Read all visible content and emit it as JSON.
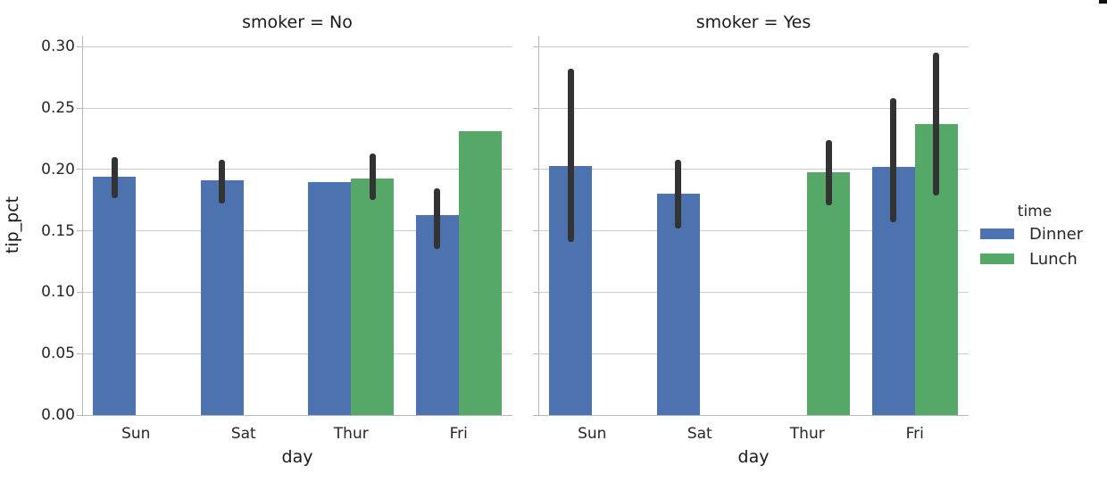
{
  "figure": {
    "background": "#ffffff"
  },
  "legend": {
    "title": "time",
    "entries": [
      {
        "label": "Dinner",
        "color": "#4c72b0"
      },
      {
        "label": "Lunch",
        "color": "#55a868"
      }
    ]
  },
  "chart_data": {
    "type": "bar",
    "categories": [
      "Sun",
      "Sat",
      "Thur",
      "Fri"
    ],
    "xlabel": "day",
    "ylabel": "tip_pct",
    "ylim": [
      0,
      0.309
    ],
    "yticks": [
      0.0,
      0.05,
      0.1,
      0.15,
      0.2,
      0.25,
      0.3
    ],
    "grid": true,
    "hue": "time",
    "facet_by": "smoker",
    "legend_position": "right",
    "error_bars": "shown as dark vertical confidence-interval lines",
    "facets": [
      {
        "title": "smoker = No",
        "series": [
          {
            "name": "Dinner",
            "color": "#4c72b0",
            "values": [
              0.194,
              0.191,
              0.19,
              0.163
            ],
            "ci_low": [
              0.177,
              0.172,
              null,
              0.135
            ],
            "ci_high": [
              0.21,
              0.208,
              null,
              0.185
            ]
          },
          {
            "name": "Lunch",
            "color": "#55a868",
            "values": [
              null,
              null,
              0.193,
              0.231
            ],
            "ci_low": [
              null,
              null,
              0.175,
              null
            ],
            "ci_high": [
              null,
              null,
              0.213,
              null
            ]
          }
        ]
      },
      {
        "title": "smoker = Yes",
        "series": [
          {
            "name": "Dinner",
            "color": "#4c72b0",
            "values": [
              0.203,
              0.18,
              null,
              0.202
            ],
            "ci_low": [
              0.141,
              0.152,
              null,
              0.157
            ],
            "ci_high": [
              0.282,
              0.208,
              null,
              0.258
            ]
          },
          {
            "name": "Lunch",
            "color": "#55a868",
            "values": [
              null,
              null,
              0.198,
              0.237
            ],
            "ci_low": [
              null,
              null,
              0.171,
              0.179
            ],
            "ci_high": [
              null,
              null,
              0.224,
              0.295
            ]
          }
        ]
      }
    ]
  },
  "style": {
    "error_color": "#333333",
    "grid_color": "#cccccc",
    "spine_color": "#b8b8b8",
    "text_color": "#262626"
  }
}
